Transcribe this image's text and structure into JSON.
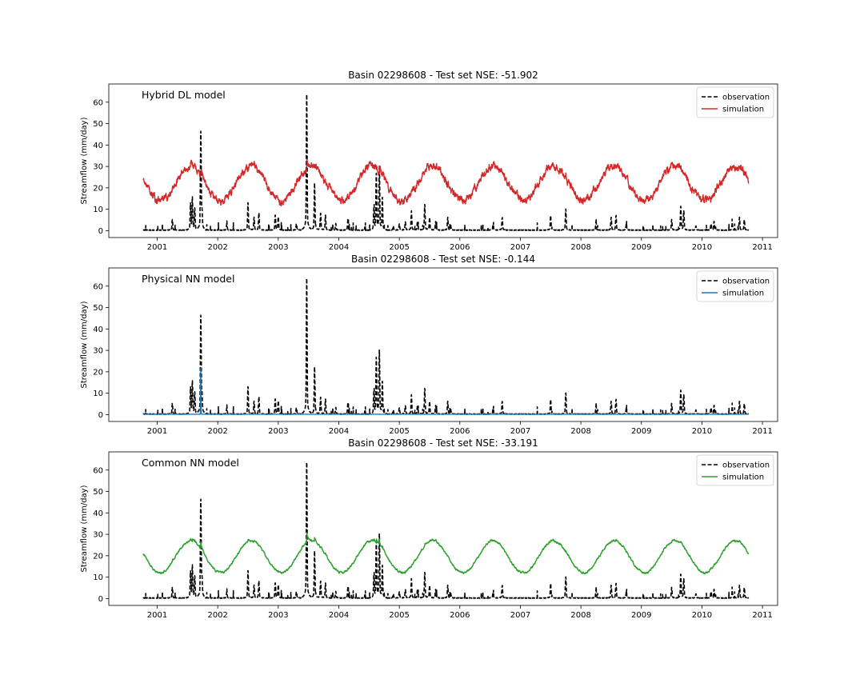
{
  "chart_data": [
    {
      "type": "line",
      "title": "Basin 02298608 - Test set NSE: -51.902",
      "annotation": "Hybrid DL model",
      "ylabel": "Streamflow (mm/day)",
      "xlabel": "",
      "x_range": [
        2000.2,
        2011.25
      ],
      "ylim": [
        -3.2,
        68.5
      ],
      "y_ticks": [
        0,
        10,
        20,
        30,
        40,
        50,
        60
      ],
      "x_ticks": [
        2001,
        2002,
        2003,
        2004,
        2005,
        2006,
        2007,
        2008,
        2009,
        2010,
        2011
      ],
      "legend": {
        "position": "top-right",
        "entries": [
          "observation",
          "simulation"
        ]
      },
      "series": [
        {
          "name": "observation",
          "color": "#000000",
          "style": "dashed"
        },
        {
          "name": "simulation",
          "color": "#d62728",
          "style": "solid",
          "profile": {
            "mean": 22,
            "amplitude": 8,
            "peak_fraction": 0.55,
            "noise": 2.5,
            "shift": 2001.0,
            "min": 9
          }
        }
      ]
    },
    {
      "type": "line",
      "title": "Basin 02298608 - Test set NSE: -0.144",
      "annotation": "Physical NN model",
      "ylabel": "Streamflow (mm/day)",
      "xlabel": "",
      "x_range": [
        2000.2,
        2011.25
      ],
      "ylim": [
        -3.2,
        68.5
      ],
      "y_ticks": [
        0,
        10,
        20,
        30,
        40,
        50,
        60
      ],
      "x_ticks": [
        2001,
        2002,
        2003,
        2004,
        2005,
        2006,
        2007,
        2008,
        2009,
        2010,
        2011
      ],
      "legend": {
        "position": "top-right",
        "entries": [
          "observation",
          "simulation"
        ]
      },
      "series": [
        {
          "name": "observation",
          "color": "#000000",
          "style": "dashed"
        },
        {
          "name": "simulation",
          "color": "#1f77b4",
          "style": "solid",
          "profile": {
            "flat": 0.2,
            "spike_x": 2001.72,
            "spike_y": 22
          }
        }
      ]
    },
    {
      "type": "line",
      "title": "Basin 02298608 - Test set NSE: -33.191",
      "annotation": "Common NN model",
      "ylabel": "Streamflow (mm/day)",
      "xlabel": "",
      "x_range": [
        2000.2,
        2011.25
      ],
      "ylim": [
        -3.2,
        68.5
      ],
      "y_ticks": [
        0,
        10,
        20,
        30,
        40,
        50,
        60
      ],
      "x_ticks": [
        2001,
        2002,
        2003,
        2004,
        2005,
        2006,
        2007,
        2008,
        2009,
        2010,
        2011
      ],
      "legend": {
        "position": "top-right",
        "entries": [
          "observation",
          "simulation"
        ]
      },
      "series": [
        {
          "name": "observation",
          "color": "#000000",
          "style": "dashed"
        },
        {
          "name": "simulation",
          "color": "#2ca02c",
          "style": "solid",
          "profile": {
            "mean": 19.5,
            "amplitude": 7.5,
            "peak_fraction": 0.55,
            "noise": 0.7,
            "shift": 2001.0,
            "min": 11.5
          }
        }
      ]
    }
  ],
  "observation": {
    "start": 2000.77,
    "end": 2010.77,
    "peaks": [
      [
        2001.25,
        5
      ],
      [
        2001.55,
        12
      ],
      [
        2001.58,
        15
      ],
      [
        2001.62,
        10
      ],
      [
        2001.72,
        46
      ],
      [
        2001.74,
        8
      ],
      [
        2002.15,
        3
      ],
      [
        2002.5,
        13
      ],
      [
        2002.6,
        6
      ],
      [
        2002.68,
        8
      ],
      [
        2002.95,
        7
      ],
      [
        2003.0,
        6
      ],
      [
        2003.3,
        3
      ],
      [
        2003.47,
        65
      ],
      [
        2003.6,
        22
      ],
      [
        2003.7,
        8
      ],
      [
        2003.78,
        7
      ],
      [
        2003.95,
        3
      ],
      [
        2004.15,
        5
      ],
      [
        2004.58,
        10
      ],
      [
        2004.62,
        26
      ],
      [
        2004.67,
        30
      ],
      [
        2004.72,
        15
      ],
      [
        2004.9,
        2
      ],
      [
        2005.0,
        3
      ],
      [
        2005.1,
        4
      ],
      [
        2005.2,
        9
      ],
      [
        2005.3,
        4
      ],
      [
        2005.42,
        12
      ],
      [
        2005.5,
        6
      ],
      [
        2005.6,
        4
      ],
      [
        2005.8,
        6
      ],
      [
        2005.85,
        2
      ],
      [
        2006.55,
        3
      ],
      [
        2006.7,
        6
      ],
      [
        2007.5,
        7
      ],
      [
        2007.75,
        10
      ],
      [
        2008.25,
        4
      ],
      [
        2008.5,
        6
      ],
      [
        2008.58,
        7
      ],
      [
        2008.75,
        3
      ],
      [
        2009.5,
        5
      ],
      [
        2009.65,
        11
      ],
      [
        2009.7,
        9
      ],
      [
        2009.9,
        2
      ],
      [
        2010.15,
        3
      ],
      [
        2010.2,
        4
      ],
      [
        2010.5,
        3
      ],
      [
        2010.62,
        6
      ],
      [
        2010.7,
        5
      ]
    ]
  }
}
